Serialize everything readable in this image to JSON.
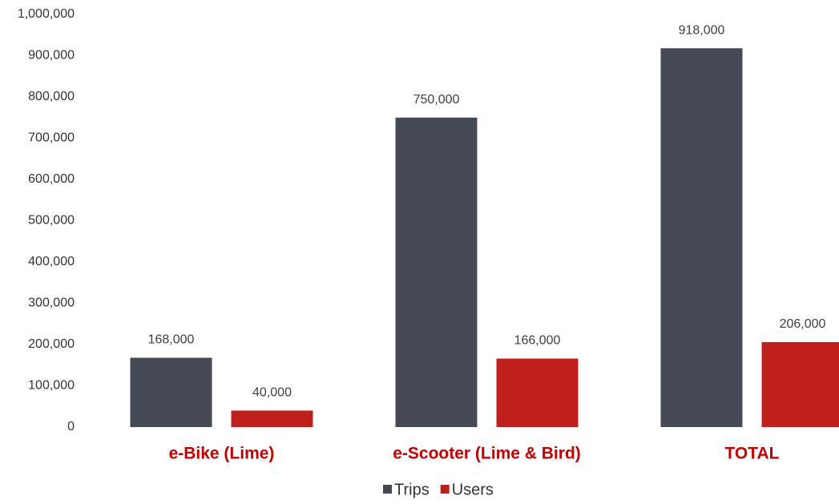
{
  "chart_data": {
    "type": "bar",
    "categories": [
      "e-Bike (Lime)",
      "e-Scooter (Lime & Bird)",
      "TOTAL"
    ],
    "series": [
      {
        "name": "Trips",
        "color": "#434a55",
        "values": [
          168000,
          750000,
          918000
        ],
        "value_labels": [
          "168,000",
          "750,000",
          "918,000"
        ]
      },
      {
        "name": "Users",
        "color": "#c0201c",
        "values": [
          40000,
          166000,
          206000
        ],
        "value_labels": [
          "40,000",
          "166,000",
          "206,000"
        ]
      }
    ],
    "ylim": [
      0,
      1000000
    ],
    "yticks": [
      0,
      {
        "value": 100000,
        "label": "100,000"
      },
      {
        "value": 200000,
        "label": "200,000"
      },
      {
        "value": 300000,
        "label": "300,000"
      },
      {
        "value": 400000,
        "label": "400,000"
      },
      {
        "value": 500000,
        "label": "500,000"
      },
      {
        "value": 600000,
        "label": "600,000"
      },
      {
        "value": 700000,
        "label": "700,000"
      },
      {
        "value": 800000,
        "label": "800,000"
      },
      {
        "value": 900000,
        "label": "900,000"
      },
      {
        "value": 1000000,
        "label": "1,000,000"
      }
    ],
    "grid": false,
    "legend": "bottom"
  }
}
